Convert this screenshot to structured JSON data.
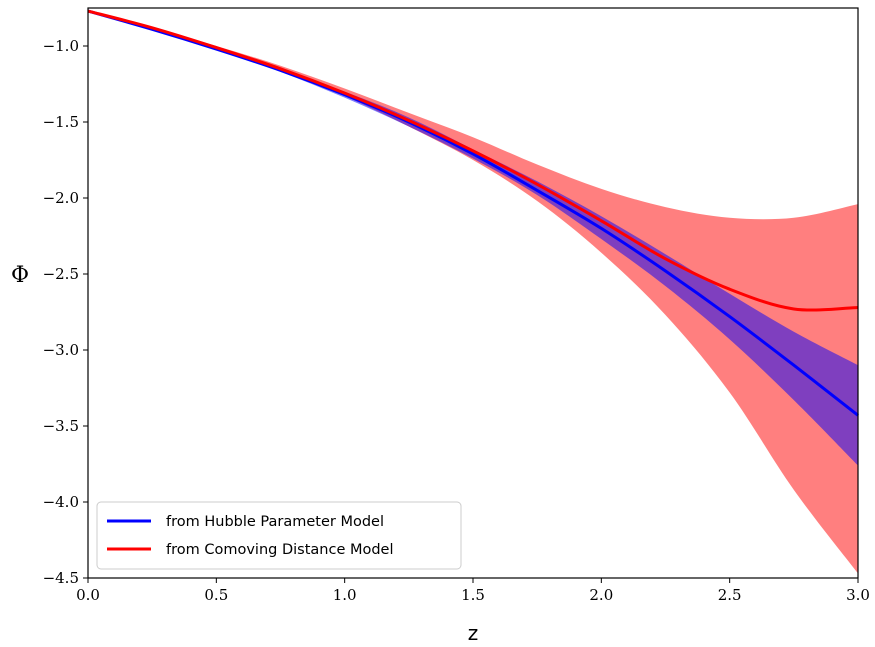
{
  "chart_data": {
    "type": "line",
    "title": "",
    "xlabel": "z",
    "ylabel": "Φ",
    "xlim": [
      0.0,
      3.0
    ],
    "ylim": [
      -4.5,
      -0.75
    ],
    "xticks": [
      0.0,
      0.5,
      1.0,
      1.5,
      2.0,
      2.5,
      3.0
    ],
    "xtick_labels": [
      "0.0",
      "0.5",
      "1.0",
      "1.5",
      "2.0",
      "2.5",
      "3.0"
    ],
    "yticks": [
      -1.0,
      -1.5,
      -2.0,
      -2.5,
      -3.0,
      -3.5,
      -4.0,
      -4.5
    ],
    "ytick_labels": [
      "−1.0",
      "−1.5",
      "−2.0",
      "−2.5",
      "−3.0",
      "−3.5",
      "−4.0",
      "−4.5"
    ],
    "grid": false,
    "legend_position": "lower-left",
    "x": [
      0.0,
      0.25,
      0.5,
      0.75,
      1.0,
      1.25,
      1.5,
      1.75,
      2.0,
      2.25,
      2.5,
      2.75,
      3.0
    ],
    "series": [
      {
        "name": "from Hubble Parameter Model",
        "color": "#0000ff",
        "band_color": "#0000ff",
        "values": [
          -0.77,
          -0.89,
          -1.02,
          -1.16,
          -1.32,
          -1.5,
          -1.71,
          -1.95,
          -2.2,
          -2.48,
          -2.78,
          -3.1,
          -3.43
        ],
        "lower": [
          -0.77,
          -0.89,
          -1.02,
          -1.17,
          -1.34,
          -1.53,
          -1.74,
          -1.98,
          -2.27,
          -2.58,
          -2.93,
          -3.33,
          -3.76
        ],
        "upper": [
          -0.77,
          -0.89,
          -1.02,
          -1.15,
          -1.3,
          -1.47,
          -1.68,
          -1.89,
          -2.12,
          -2.37,
          -2.63,
          -2.88,
          -3.1
        ]
      },
      {
        "name": "from Comoving Distance Model",
        "color": "#ff0000",
        "band_color": "#ff0000",
        "values": [
          -0.77,
          -0.88,
          -1.01,
          -1.15,
          -1.31,
          -1.49,
          -1.69,
          -1.91,
          -2.15,
          -2.4,
          -2.6,
          -2.73,
          -2.72
        ],
        "lower": [
          -0.77,
          -0.88,
          -1.02,
          -1.16,
          -1.33,
          -1.53,
          -1.75,
          -2.02,
          -2.36,
          -2.77,
          -3.28,
          -3.92,
          -4.47
        ],
        "upper": [
          -0.77,
          -0.88,
          -1.0,
          -1.13,
          -1.28,
          -1.44,
          -1.6,
          -1.78,
          -1.94,
          -2.06,
          -2.13,
          -2.13,
          -2.04
        ]
      }
    ]
  }
}
